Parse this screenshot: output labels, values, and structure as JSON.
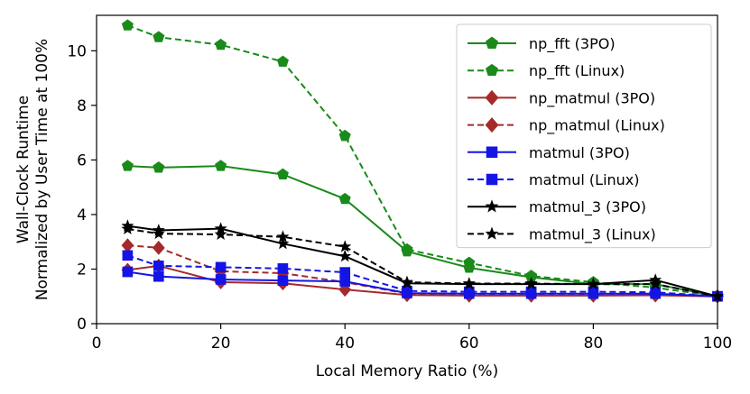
{
  "chart_data": {
    "type": "line",
    "xlabel": "Local Memory Ratio (%)",
    "ylabel_lines": [
      "Wall-Clock Runtime",
      "Normalized by User Time at 100%"
    ],
    "xlim": [
      0,
      100
    ],
    "ylim": [
      0,
      11.3
    ],
    "xticks": [
      0,
      20,
      40,
      60,
      80,
      100
    ],
    "yticks": [
      0,
      2,
      4,
      6,
      8,
      10
    ],
    "grid": false,
    "legend_position": "top-right",
    "series": [
      {
        "name": "np_fft (3PO)",
        "color": "#1a8a1a",
        "dash": "solid",
        "marker": "pentagon",
        "x": [
          5,
          10,
          20,
          30,
          40,
          50,
          60,
          70,
          80,
          90,
          100
        ],
        "y": [
          5.78,
          5.72,
          5.78,
          5.47,
          4.57,
          2.65,
          2.05,
          1.7,
          1.45,
          1.45,
          1.0
        ]
      },
      {
        "name": "np_fft (Linux)",
        "color": "#1a8a1a",
        "dash": "dashed",
        "marker": "pentagon",
        "x": [
          5,
          10,
          20,
          30,
          40,
          50,
          60,
          70,
          80,
          90,
          100
        ],
        "y": [
          10.93,
          10.5,
          10.22,
          9.6,
          6.88,
          2.72,
          2.23,
          1.75,
          1.52,
          1.32,
          1.0
        ]
      },
      {
        "name": "np_matmul (3PO)",
        "color": "#a52a2a",
        "dash": "solid",
        "marker": "diamond",
        "x": [
          5,
          10,
          20,
          30,
          40,
          50,
          60,
          70,
          80,
          90,
          100
        ],
        "y": [
          1.97,
          2.12,
          1.52,
          1.48,
          1.25,
          1.05,
          1.03,
          1.03,
          1.03,
          1.04,
          1.0
        ]
      },
      {
        "name": "np_matmul (Linux)",
        "color": "#a52a2a",
        "dash": "dashed",
        "marker": "diamond",
        "x": [
          5,
          10,
          20,
          30,
          40,
          50,
          60,
          70,
          80,
          90,
          100
        ],
        "y": [
          2.87,
          2.78,
          1.92,
          1.85,
          1.52,
          1.1,
          1.08,
          1.08,
          1.08,
          1.05,
          1.0
        ]
      },
      {
        "name": "matmul (3PO)",
        "color": "#1414e6",
        "dash": "solid",
        "marker": "square",
        "x": [
          5,
          10,
          20,
          30,
          40,
          50,
          60,
          70,
          80,
          90,
          100
        ],
        "y": [
          1.9,
          1.73,
          1.62,
          1.58,
          1.55,
          1.12,
          1.1,
          1.1,
          1.1,
          1.1,
          1.0
        ]
      },
      {
        "name": "matmul (Linux)",
        "color": "#1414e6",
        "dash": "dashed",
        "marker": "square",
        "x": [
          5,
          10,
          20,
          30,
          40,
          50,
          60,
          70,
          80,
          90,
          100
        ],
        "y": [
          2.5,
          2.12,
          2.07,
          2.02,
          1.88,
          1.2,
          1.17,
          1.17,
          1.17,
          1.15,
          1.0
        ]
      },
      {
        "name": "matmul_3 (3PO)",
        "color": "#000000",
        "dash": "solid",
        "marker": "star",
        "x": [
          5,
          10,
          20,
          30,
          40,
          50,
          60,
          70,
          80,
          90,
          100
        ],
        "y": [
          3.58,
          3.42,
          3.48,
          2.93,
          2.47,
          1.48,
          1.45,
          1.45,
          1.45,
          1.6,
          1.0
        ]
      },
      {
        "name": "matmul_3 (Linux)",
        "color": "#000000",
        "dash": "dashed",
        "marker": "star",
        "x": [
          5,
          10,
          20,
          30,
          40,
          50,
          60,
          70,
          80,
          90,
          100
        ],
        "y": [
          3.47,
          3.3,
          3.27,
          3.18,
          2.82,
          1.52,
          1.47,
          1.47,
          1.45,
          1.45,
          1.0
        ]
      }
    ]
  }
}
